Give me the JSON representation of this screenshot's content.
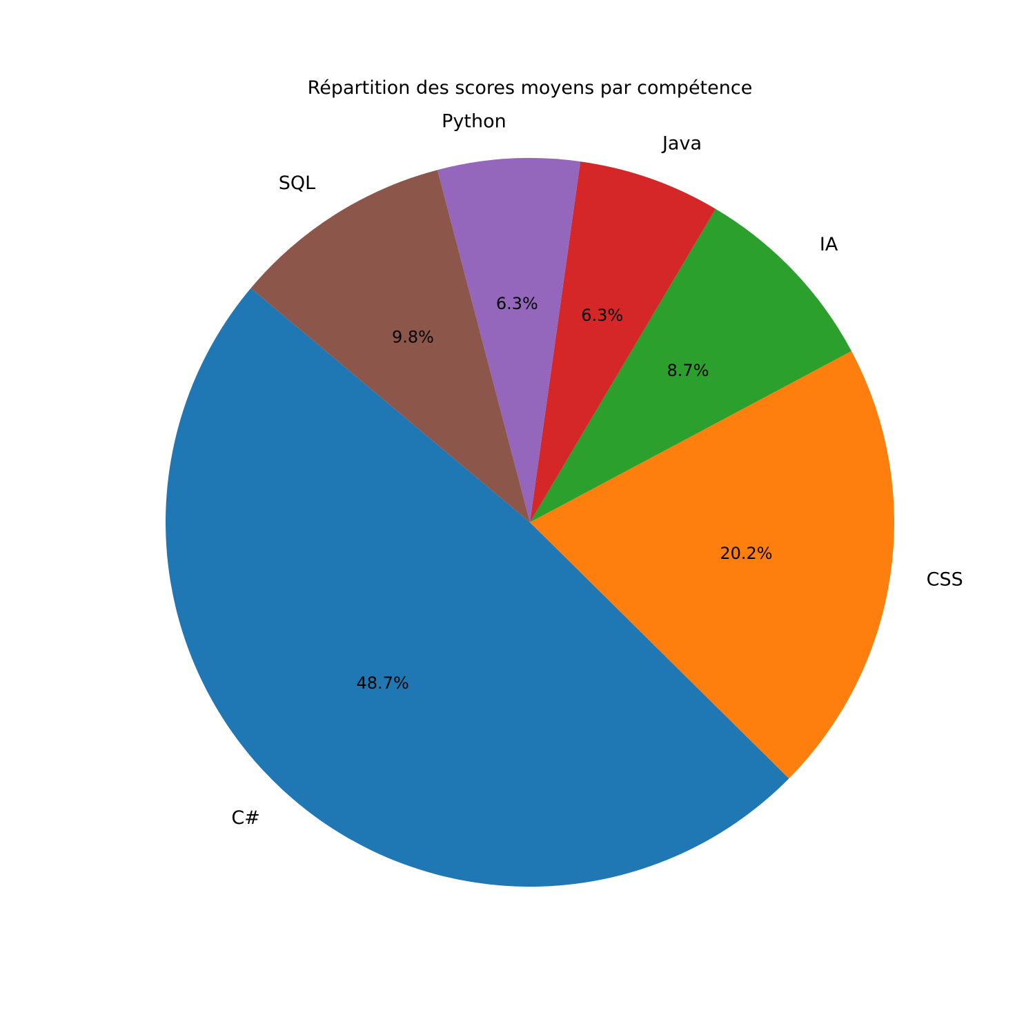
{
  "chart_data": {
    "type": "pie",
    "title": "Répartition des scores moyens par compétence",
    "start_angle_deg": 140,
    "direction": "counterclockwise",
    "slices": [
      {
        "label": "C#",
        "value": 48.7,
        "pct_label": "48.7%",
        "color": "#1f77b4"
      },
      {
        "label": "CSS",
        "value": 20.2,
        "pct_label": "20.2%",
        "color": "#ff7f0e"
      },
      {
        "label": "IA",
        "value": 8.7,
        "pct_label": "8.7%",
        "color": "#2ca02c"
      },
      {
        "label": "Java",
        "value": 6.3,
        "pct_label": "6.3%",
        "color": "#d62728"
      },
      {
        "label": "Python",
        "value": 6.3,
        "pct_label": "6.3%",
        "color": "#9467bd"
      },
      {
        "label": "SQL",
        "value": 9.8,
        "pct_label": "9.8%",
        "color": "#8c564b"
      }
    ]
  }
}
